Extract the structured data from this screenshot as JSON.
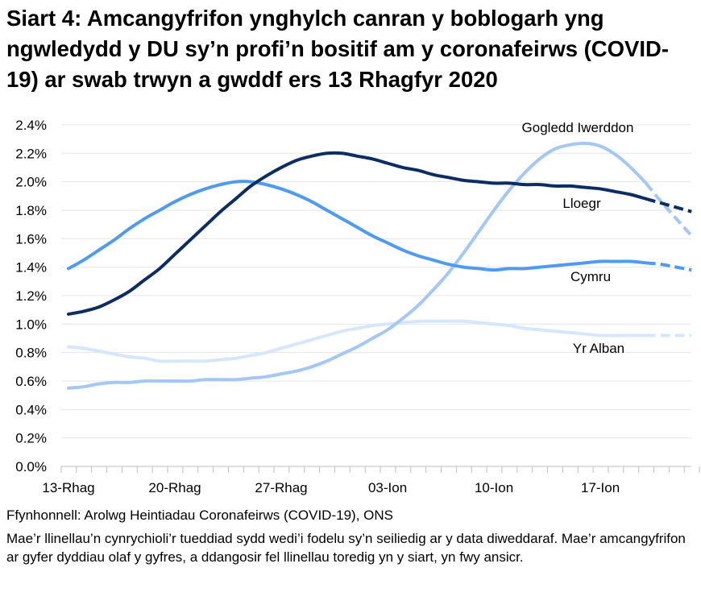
{
  "title": "Siart 4: Amcangyfrifon ynghylch canran y boblogarh yng ngwledydd y DU sy’n profi’n bositif am y coronafeirws (COVID-19) ar swab trwyn a gwddf ers 13 Rhagfyr 2020",
  "source": "Ffynhonnell: Arolwg Heintiadau Coronafeirws (COVID-19), ONS",
  "note": "Mae’r llinellau’n cynrychioli’r tueddiad sydd wedi’i fodelu sy’n seiliedig ar y data diweddaraf. Mae’r amcangyfrifon ar gyfer dyddiau olaf y gyfres, a ddangosir fel llinellau toredig yn y siart, yn fwy ansicr.",
  "chart_data": {
    "type": "line",
    "x_start": "13-Rhag",
    "x_tick_labels": [
      "13-Rhag",
      "20-Rhag",
      "27-Rhag",
      "03-Ion",
      "10-Ion",
      "17-Ion"
    ],
    "y_tick_labels": [
      "0.0%",
      "0.2%",
      "0.4%",
      "0.6%",
      "0.8%",
      "1.0%",
      "1.2%",
      "1.4%",
      "1.6%",
      "1.8%",
      "2.0%",
      "2.2%",
      "2.4%"
    ],
    "ylim": [
      0,
      2.4
    ],
    "grid": true,
    "dashed_from_index": 38,
    "series": [
      {
        "name": "Gogledd Iwerddon",
        "color": "#a3c7f7",
        "values": [
          0.55,
          0.56,
          0.58,
          0.59,
          0.59,
          0.6,
          0.6,
          0.6,
          0.6,
          0.61,
          0.61,
          0.61,
          0.62,
          0.63,
          0.65,
          0.67,
          0.7,
          0.74,
          0.79,
          0.84,
          0.9,
          0.96,
          1.04,
          1.13,
          1.24,
          1.36,
          1.5,
          1.65,
          1.8,
          1.94,
          2.06,
          2.16,
          2.23,
          2.26,
          2.27,
          2.25,
          2.19,
          2.1,
          1.99,
          1.86,
          1.74,
          1.62
        ]
      },
      {
        "name": "Lloegr",
        "color": "#0c2d63",
        "values": [
          1.07,
          1.09,
          1.12,
          1.17,
          1.23,
          1.31,
          1.39,
          1.49,
          1.59,
          1.69,
          1.79,
          1.88,
          1.97,
          2.04,
          2.1,
          2.15,
          2.18,
          2.2,
          2.2,
          2.18,
          2.16,
          2.13,
          2.1,
          2.08,
          2.05,
          2.03,
          2.01,
          2.0,
          1.99,
          1.99,
          1.98,
          1.98,
          1.97,
          1.97,
          1.96,
          1.95,
          1.93,
          1.91,
          1.88,
          1.85,
          1.82,
          1.79
        ]
      },
      {
        "name": "Cymru",
        "color": "#4f9bf3",
        "values": [
          1.39,
          1.45,
          1.52,
          1.59,
          1.67,
          1.74,
          1.8,
          1.86,
          1.91,
          1.95,
          1.98,
          2.0,
          2.0,
          1.98,
          1.95,
          1.91,
          1.86,
          1.8,
          1.74,
          1.68,
          1.62,
          1.57,
          1.52,
          1.48,
          1.45,
          1.42,
          1.4,
          1.39,
          1.38,
          1.39,
          1.39,
          1.4,
          1.41,
          1.42,
          1.43,
          1.44,
          1.44,
          1.44,
          1.43,
          1.42,
          1.4,
          1.38
        ]
      },
      {
        "name": "Yr Alban",
        "color": "#d6e7fc",
        "values": [
          0.84,
          0.83,
          0.81,
          0.79,
          0.77,
          0.76,
          0.74,
          0.74,
          0.74,
          0.74,
          0.75,
          0.76,
          0.78,
          0.8,
          0.83,
          0.86,
          0.89,
          0.92,
          0.95,
          0.97,
          0.99,
          1.0,
          1.01,
          1.02,
          1.02,
          1.02,
          1.02,
          1.01,
          1.0,
          0.99,
          0.97,
          0.96,
          0.95,
          0.94,
          0.93,
          0.92,
          0.92,
          0.92,
          0.92,
          0.92,
          0.92,
          0.92
        ]
      }
    ]
  }
}
